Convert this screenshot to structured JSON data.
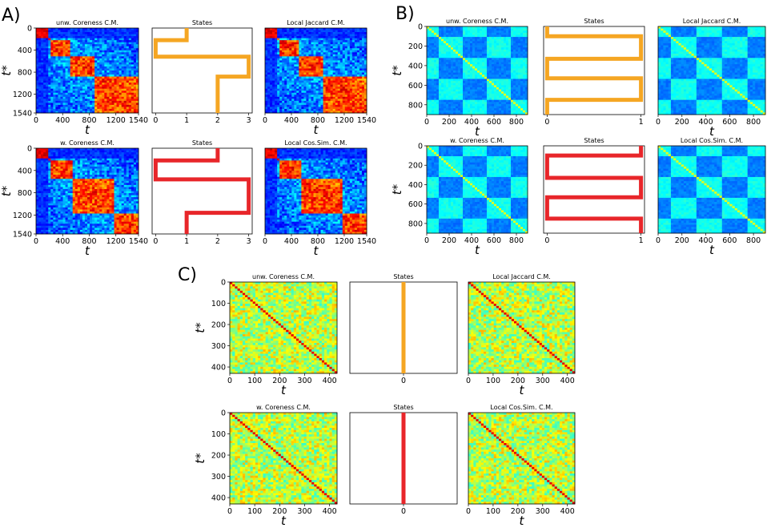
{
  "panel_labels": [
    "A)",
    "B)",
    "C)"
  ],
  "chart_data": [
    {
      "panel": "A)",
      "type": "heatmap",
      "rows": [
        {
          "matrix_titles": [
            "unw. Coreness C.M.",
            "Local Jaccard C.M."
          ],
          "states_title": "States",
          "state_color": "#f5a623",
          "states_xticks": [
            "0",
            "1",
            "2",
            "3"
          ],
          "states_xlim": [
            0,
            3
          ],
          "state_sequence": [
            {
              "t_start": 0,
              "t_end": 220,
              "state": 1
            },
            {
              "t_start": 220,
              "t_end": 520,
              "state": 0
            },
            {
              "t_start": 520,
              "t_end": 880,
              "state": 3
            },
            {
              "t_start": 880,
              "t_end": 1540,
              "state": 2
            }
          ],
          "heatmap_pattern": "block-diagonal"
        },
        {
          "matrix_titles": [
            "w. Coreness C.M.",
            "Local Cos.Sim. C.M."
          ],
          "states_title": "States",
          "state_color": "#e8262a",
          "states_xticks": [
            "0",
            "1",
            "2",
            "3"
          ],
          "states_xlim": [
            0,
            3
          ],
          "state_sequence": [
            {
              "t_start": 0,
              "t_end": 220,
              "state": 2
            },
            {
              "t_start": 220,
              "t_end": 560,
              "state": 0
            },
            {
              "t_start": 560,
              "t_end": 960,
              "state": 3
            },
            {
              "t_start": 960,
              "t_end": 1160,
              "state": 3
            },
            {
              "t_start": 1160,
              "t_end": 1540,
              "state": 1
            }
          ],
          "heatmap_pattern": "block-diagonal"
        }
      ],
      "axis": {
        "xlabel": "t",
        "ylabel": "t*",
        "ticks": [
          "0",
          "400",
          "800",
          "1200",
          "1540"
        ],
        "ylim": [
          0,
          1540
        ]
      }
    },
    {
      "panel": "B)",
      "type": "heatmap",
      "rows": [
        {
          "matrix_titles": [
            "unw. Coreness C.M.",
            "Local Jaccard C.M."
          ],
          "states_title": "States",
          "state_color": "#f5a623",
          "states_xticks": [
            "0",
            "1"
          ],
          "states_xlim": [
            0,
            1
          ],
          "state_sequence": [
            {
              "t_start": 0,
              "t_end": 100,
              "state": 0
            },
            {
              "t_start": 100,
              "t_end": 330,
              "state": 1
            },
            {
              "t_start": 330,
              "t_end": 530,
              "state": 0
            },
            {
              "t_start": 530,
              "t_end": 750,
              "state": 1
            },
            {
              "t_start": 750,
              "t_end": 900,
              "state": 0
            }
          ],
          "heatmap_pattern": "checkerboard"
        },
        {
          "matrix_titles": [
            "w. Coreness C.M.",
            "Local Cos.Sim. C.M."
          ],
          "states_title": "States",
          "state_color": "#e8262a",
          "states_xticks": [
            "0",
            "1"
          ],
          "states_xlim": [
            0,
            1
          ],
          "state_sequence": [
            {
              "t_start": 0,
              "t_end": 100,
              "state": 1
            },
            {
              "t_start": 100,
              "t_end": 330,
              "state": 0
            },
            {
              "t_start": 330,
              "t_end": 530,
              "state": 1
            },
            {
              "t_start": 530,
              "t_end": 750,
              "state": 0
            },
            {
              "t_start": 750,
              "t_end": 900,
              "state": 1
            }
          ],
          "heatmap_pattern": "checkerboard"
        }
      ],
      "axis": {
        "xlabel": "t",
        "ylabel": "t*",
        "ticks": [
          "0",
          "200",
          "400",
          "600",
          "800"
        ],
        "ylim": [
          0,
          900
        ]
      }
    },
    {
      "panel": "C)",
      "type": "heatmap",
      "rows": [
        {
          "matrix_titles": [
            "unw. Coreness C.M.",
            "Local Jaccard C.M."
          ],
          "states_title": "States",
          "state_color": "#f5a623",
          "states_xticks": [
            "0"
          ],
          "states_xlim": [
            -1,
            1
          ],
          "state_sequence": [
            {
              "t_start": 0,
              "t_end": 430,
              "state": 0
            }
          ],
          "heatmap_pattern": "noise"
        },
        {
          "matrix_titles": [
            "w. Coreness C.M.",
            "Local Cos.Sim. C.M."
          ],
          "states_title": "States",
          "state_color": "#e8262a",
          "states_xticks": [
            "0"
          ],
          "states_xlim": [
            -1,
            1
          ],
          "state_sequence": [
            {
              "t_start": 0,
              "t_end": 430,
              "state": 0
            }
          ],
          "heatmap_pattern": "noise"
        }
      ],
      "axis": {
        "xlabel": "t",
        "ylabel": "t*",
        "ticks": [
          "0",
          "100",
          "200",
          "300",
          "400"
        ],
        "ylim": [
          0,
          430
        ]
      }
    }
  ]
}
